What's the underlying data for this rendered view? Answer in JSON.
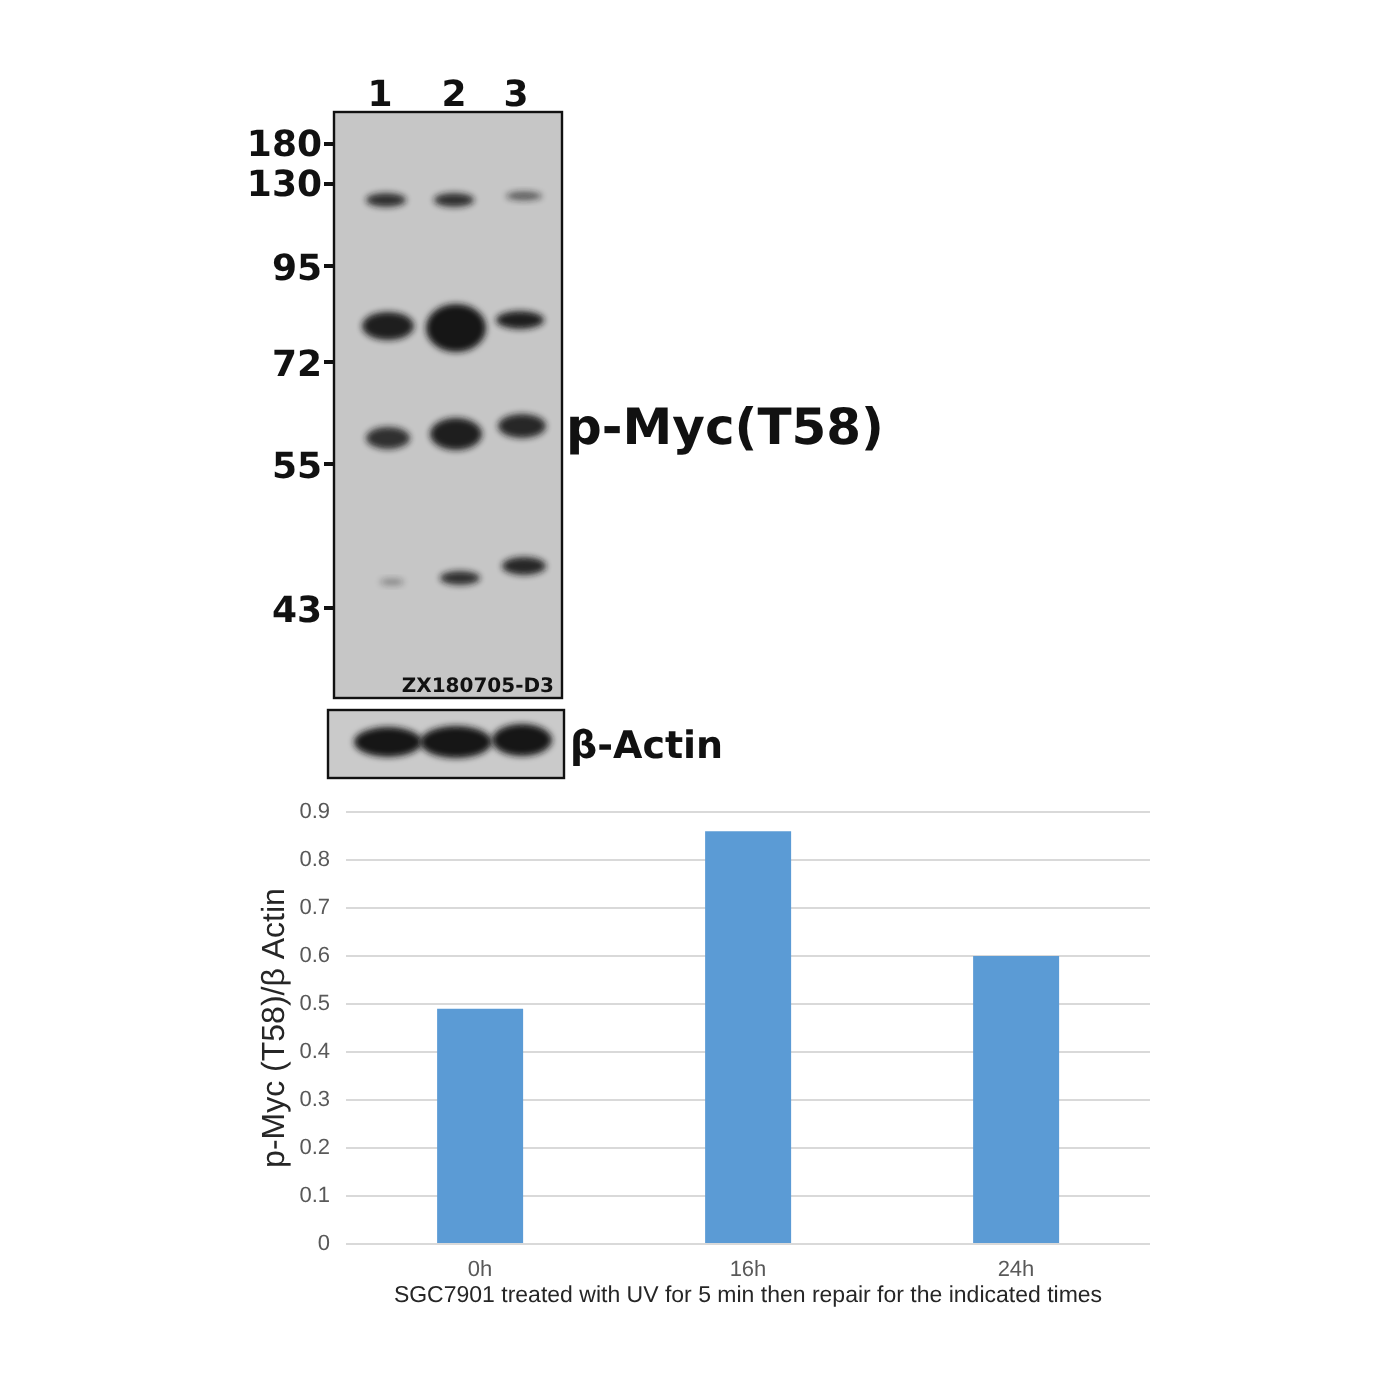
{
  "chart_data": [
    {
      "type": "other",
      "annotations": [
        "1",
        "2",
        "3",
        "180",
        "130",
        "95",
        "72",
        "55",
        "43",
        "p-Myc(T58)",
        "ZX180705-D3",
        "β-Actin"
      ]
    },
    {
      "type": "bar",
      "categories": [
        "0h",
        "16h",
        "24h"
      ],
      "values": [
        0.49,
        0.86,
        0.6
      ],
      "color": "#5b9bd5",
      "xlabel": "SGC7901 treated with UV for 5 min then repair for the indicated times",
      "ylabel": "p-Myc (T58)/β Actin",
      "ylim": [
        0,
        0.9
      ],
      "yticks": [
        0,
        0.1,
        0.2,
        0.3,
        0.4,
        0.5,
        0.6,
        0.7,
        0.8,
        0.9
      ],
      "grid": "y"
    }
  ]
}
